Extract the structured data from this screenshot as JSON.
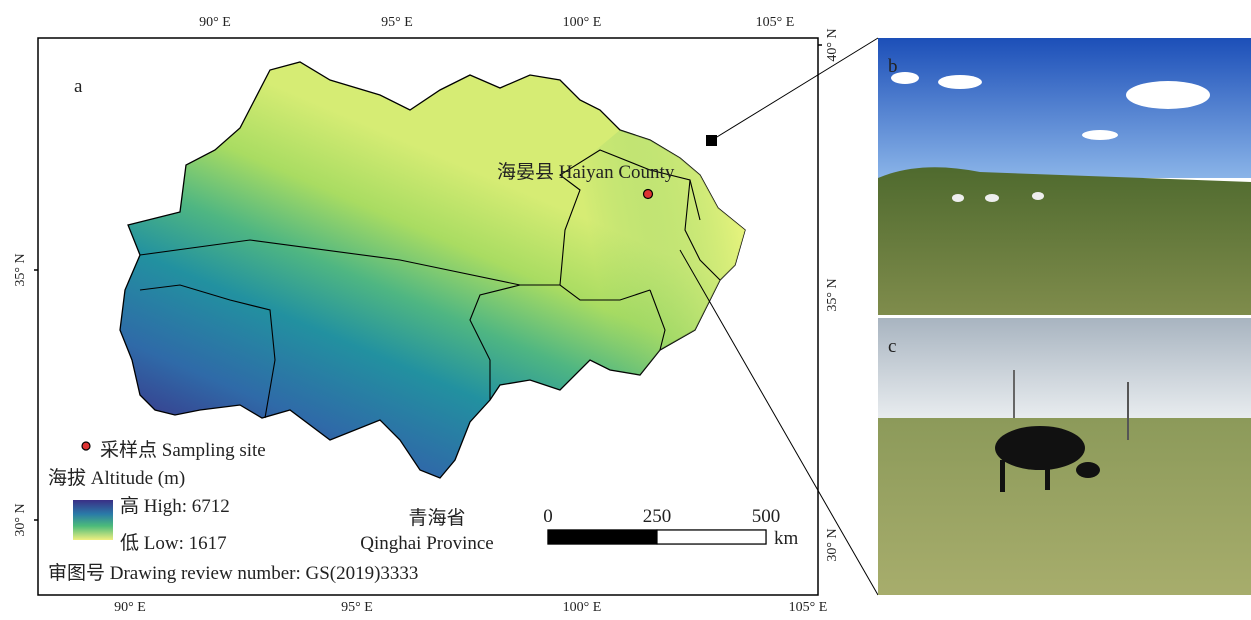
{
  "map": {
    "panel_label": "a",
    "top_lon_ticks": [
      "90° E",
      "95° E",
      "100° E",
      "105° E"
    ],
    "bottom_lon_ticks": [
      "90° E",
      "95° E",
      "100° E",
      "105° E"
    ],
    "left_lat_ticks": [
      "35° N",
      "30° N"
    ],
    "right_lat_ticks": [
      "40° N",
      "35° N",
      "30° N"
    ],
    "site_label": "海晏县 Haiyan County",
    "legend": {
      "site": "采样点 Sampling site",
      "altitude_title": "海拔 Altitude (m)",
      "high": "高 High: 6712",
      "low": "低 Low: 1617"
    },
    "province_cn": "青海省",
    "province_en": "Qinghai Province",
    "scale": {
      "ticks": [
        0,
        250,
        500
      ],
      "unit": "km"
    },
    "review_number": "审图号 Drawing review number: GS(2019)3333"
  },
  "photos": {
    "b": "b",
    "c": "c"
  }
}
